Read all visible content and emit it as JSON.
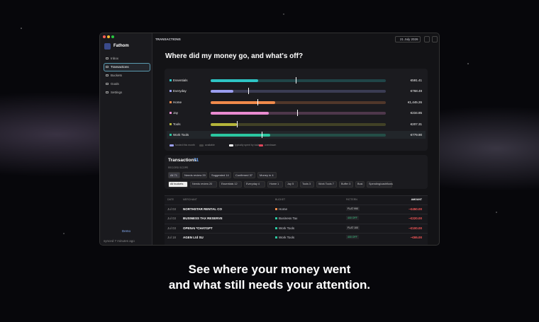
{
  "window": {
    "title": "TRANSACTIONS",
    "date": "21 July 2026"
  },
  "sidebar": {
    "brand": "Fathom",
    "nav": [
      "Inbox",
      "Transactions",
      "Buckets",
      "Goals",
      "Settings"
    ],
    "mode": "Demo",
    "status": "synced 7 minutes ago"
  },
  "overview": {
    "heading": "Where did my money go, and what's off?",
    "buckets": [
      {
        "name": "Essentials",
        "amount": "€591.41"
      },
      {
        "name": "Everyday",
        "amount": "€768.49"
      },
      {
        "name": "Home",
        "amount": "€1,445.26"
      },
      {
        "name": "Jay",
        "amount": "€234.85"
      },
      {
        "name": "Tools",
        "amount": "€207.31"
      },
      {
        "name": "Work Tools",
        "amount": "€779.90"
      }
    ],
    "legend": [
      "funded this month",
      "available",
      "typically spent by today",
      "overdrawn"
    ]
  },
  "transactions": {
    "title": "Transactions",
    "count": "71",
    "scope_label": "RECORD SCOPE",
    "scopes": [
      "All 71",
      "Needs review 20",
      "Suggested 14",
      "Confirmed 37",
      "Money in 4"
    ],
    "buckets": [
      "All buckets",
      "Needs review 20",
      "Essentials 12",
      "Everyday 4",
      "Home 1",
      "Jay 5",
      "Tools 3",
      "Work Tools 7",
      "Buffer 3",
      "Busi",
      "Spending/cashflows"
    ],
    "columns": [
      "DATE",
      "MERCHANT",
      "BUCKET",
      "PATTERN",
      "AMOUNT"
    ],
    "rows": [
      [
        "Jul 03",
        "NORTHSTAR RENTAL CO",
        "Home",
        "FLAT 990",
        "−€450.00"
      ],
      [
        "Jul 03",
        "BUSINESS TAX RESERVE",
        "Business Tax",
        "400 OFF",
        "−€220.00"
      ],
      [
        "Jul 03",
        "OPENAI *CHATGPT",
        "Work Tools",
        "FLAT 100",
        "−€100.00"
      ],
      [
        "Jul 18",
        "AGEN Ltd SU",
        "Work Tools",
        "400 OFF",
        "−€65.00"
      ]
    ]
  },
  "caption": [
    "See where your money went",
    "and what still needs your attention."
  ]
}
